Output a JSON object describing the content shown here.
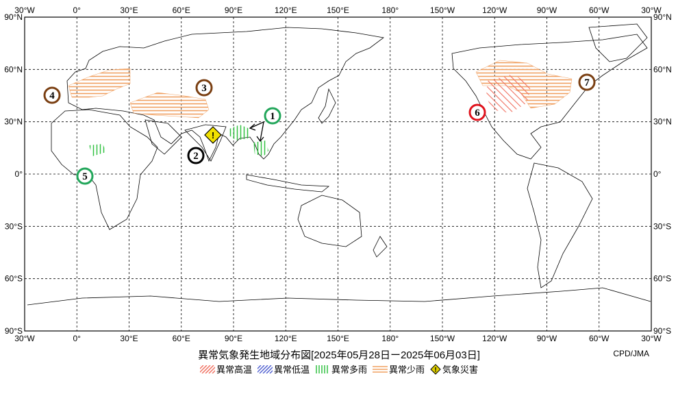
{
  "map": {
    "top_lon_labels": [
      "30°W",
      "0°",
      "30°E",
      "60°E",
      "90°E",
      "120°E",
      "150°E",
      "180°",
      "150°W",
      "120°W",
      "90°W",
      "60°W",
      "30°W"
    ],
    "bottom_lon_labels": [
      "30°W",
      "0°",
      "30°E",
      "60°E",
      "90°E",
      "120°E",
      "150°E",
      "180°",
      "150°W",
      "120°W",
      "90°W",
      "60°W",
      "30°W"
    ],
    "lat_labels": [
      "90°N",
      "60°N",
      "30°N",
      "0°",
      "30°S",
      "60°S",
      "90°S"
    ],
    "markers": [
      {
        "num": "1",
        "color": "#22a65a"
      },
      {
        "num": "2",
        "color": "#000000"
      },
      {
        "num": "3",
        "color": "#7a3f12"
      },
      {
        "num": "4",
        "color": "#7a3f12"
      },
      {
        "num": "5",
        "color": "#22a65a"
      },
      {
        "num": "6",
        "color": "#e0141e"
      },
      {
        "num": "7",
        "color": "#7a3f12"
      }
    ],
    "disaster_symbol": "!"
  },
  "footer": {
    "title": "異常気象発生地域分布図[2025年05月28日ー2025年06月03日]",
    "credit": "CPD/JMA",
    "legend": [
      {
        "label": "異常高温",
        "color": "#f07060",
        "icon": "diag-red-hatch"
      },
      {
        "label": "異常低温",
        "color": "#5060d0",
        "icon": "diag-blue-hatch"
      },
      {
        "label": "異常多雨",
        "color": "#30c040",
        "icon": "vertical-green-hatch"
      },
      {
        "label": "異常少雨",
        "color": "#f0a060",
        "icon": "horizontal-orange-hatch"
      },
      {
        "label": "気象災害",
        "color": "#e0d000",
        "icon": "warning-diamond-icon"
      }
    ]
  }
}
